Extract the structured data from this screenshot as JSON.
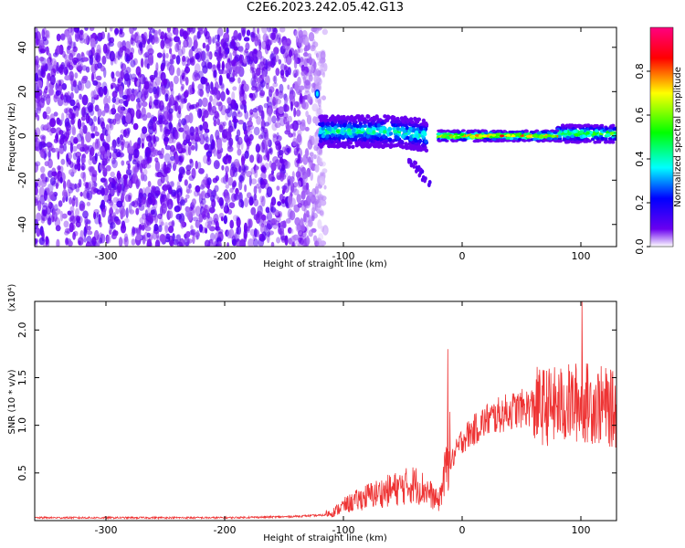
{
  "title": "C2E6.2023.242.05.42.G13",
  "chart_data": [
    {
      "type": "heatmap",
      "title": "",
      "xlabel": "Height of straight line (km)",
      "ylabel": "Frequency (Hz)",
      "xlim": [
        -360,
        130
      ],
      "ylim": [
        -50,
        49
      ],
      "x_ticks": [
        -300,
        -200,
        -100,
        0,
        100
      ],
      "y_ticks": [
        -40,
        -20,
        0,
        20,
        40
      ],
      "colorbar": {
        "label": "Normalized spectral amplitude",
        "range": [
          0,
          1
        ],
        "ticks": [
          0.0,
          0.2,
          0.4,
          0.6,
          0.8
        ],
        "colors": [
          "#ffffff",
          "#6a00f0",
          "#0000ff",
          "#00ffff",
          "#00ff00",
          "#ffff00",
          "#ff0000",
          "#ff0080"
        ]
      },
      "regions": [
        {
          "x_range": [
            -360,
            -115
          ],
          "freq_range": [
            -50,
            49
          ],
          "amplitude": 0.05
        },
        {
          "x_range": [
            -120,
            -30
          ],
          "freq_center": 2,
          "freq_width": 10,
          "amplitude": 0.4
        },
        {
          "x_range": [
            -20,
            80
          ],
          "freq_center": 0,
          "freq_width": 4,
          "amplitude": 0.8
        },
        {
          "x_range": [
            80,
            130
          ],
          "freq_center": 1,
          "freq_width": 6,
          "amplitude": 0.6
        }
      ]
    },
    {
      "type": "line",
      "title": "",
      "xlabel": "Height of straight line (km)",
      "ylabel": "SNR (10 * v/v)",
      "yscale_label": "(x10⁴)",
      "xlim": [
        -360,
        130
      ],
      "ylim": [
        0,
        2.3
      ],
      "x_ticks": [
        -300,
        -200,
        -100,
        0,
        100
      ],
      "y_ticks": [
        0.5,
        1.0,
        1.5,
        2.0
      ],
      "color": "#ee3333",
      "series": [
        {
          "x": [
            -360,
            -300,
            -200,
            -150,
            -110,
            -100,
            -80,
            -60,
            -40,
            -30,
            -20,
            -15,
            -10,
            0,
            20,
            40,
            60,
            80,
            100,
            120,
            130
          ],
          "values": [
            0.03,
            0.03,
            0.03,
            0.04,
            0.06,
            0.12,
            0.2,
            0.25,
            0.3,
            0.25,
            0.15,
            0.35,
            0.6,
            0.85,
            1.05,
            1.15,
            1.2,
            1.2,
            1.25,
            1.2,
            1.15
          ]
        }
      ],
      "spikes": [
        {
          "x": -12,
          "value": 1.8
        },
        {
          "x": 101,
          "value": 2.3
        }
      ]
    }
  ]
}
